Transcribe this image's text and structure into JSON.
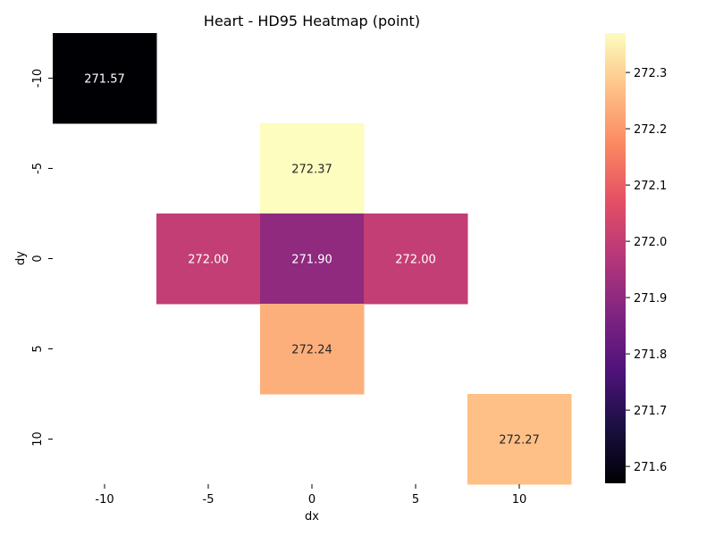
{
  "chart_data": {
    "type": "heatmap",
    "title": "Heart - HD95 Heatmap (point)",
    "xlabel": "dx",
    "ylabel": "dy",
    "x_categories": [
      "-10",
      "-5",
      "0",
      "5",
      "10"
    ],
    "y_categories": [
      "-10",
      "-5",
      "0",
      "5",
      "10"
    ],
    "cells": [
      {
        "dx": "-10",
        "dy": "-10",
        "value": 271.57,
        "label": "271.57"
      },
      {
        "dx": "0",
        "dy": "-5",
        "value": 272.37,
        "label": "272.37"
      },
      {
        "dx": "-5",
        "dy": "0",
        "value": 272.0,
        "label": "272.00"
      },
      {
        "dx": "0",
        "dy": "0",
        "value": 271.9,
        "label": "271.90"
      },
      {
        "dx": "5",
        "dy": "0",
        "value": 272.0,
        "label": "272.00"
      },
      {
        "dx": "0",
        "dy": "5",
        "value": 272.24,
        "label": "272.24"
      },
      {
        "dx": "10",
        "dy": "10",
        "value": 272.27,
        "label": "272.27"
      }
    ],
    "colorbar": {
      "colormap": "magma",
      "vmin": 271.57,
      "vmax": 272.37,
      "ticks": [
        "271.6",
        "271.7",
        "271.8",
        "271.9",
        "272.0",
        "272.1",
        "272.2",
        "272.3"
      ]
    },
    "grid": false
  }
}
